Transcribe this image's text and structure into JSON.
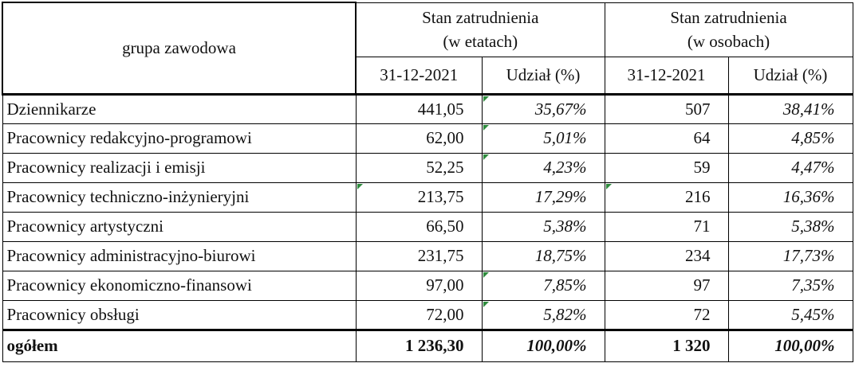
{
  "header": {
    "group_label": "grupa zawodowa",
    "section_etaty": "Stan zatrudnienia\n(w etatach)",
    "section_etaty_l1": "Stan zatrudnienia",
    "section_etaty_l2": "(w etatach)",
    "section_osoby_l1": "Stan zatrudnienia",
    "section_osoby_l2": "(w osobach)",
    "date": "31-12-2021",
    "share": "Udział (%)"
  },
  "rows": [
    {
      "name": "Dziennikarze",
      "etaty": "441,05",
      "etaty_pct": "35,67%",
      "osoby": "507",
      "osoby_pct": "38,41%"
    },
    {
      "name": "Pracownicy redakcyjno-programowi",
      "etaty": "62,00",
      "etaty_pct": "5,01%",
      "osoby": "64",
      "osoby_pct": "4,85%"
    },
    {
      "name": "Pracownicy realizacji i emisji",
      "etaty": "52,25",
      "etaty_pct": "4,23%",
      "osoby": "59",
      "osoby_pct": "4,47%"
    },
    {
      "name": "Pracownicy techniczno-inżynieryjni",
      "etaty": "213,75",
      "etaty_pct": "17,29%",
      "osoby": "216",
      "osoby_pct": "16,36%"
    },
    {
      "name": "Pracownicy artystyczni",
      "etaty": "66,50",
      "etaty_pct": "5,38%",
      "osoby": "71",
      "osoby_pct": "5,38%"
    },
    {
      "name": "Pracownicy administracyjno-biurowi",
      "etaty": "231,75",
      "etaty_pct": "18,75%",
      "osoby": "234",
      "osoby_pct": "17,73%"
    },
    {
      "name": "Pracownicy ekonomiczno-finansowi",
      "etaty": "97,00",
      "etaty_pct": "7,85%",
      "osoby": "97",
      "osoby_pct": "7,35%"
    },
    {
      "name": "Pracownicy obsługi",
      "etaty": "72,00",
      "etaty_pct": "5,82%",
      "osoby": "72",
      "osoby_pct": "5,45%"
    }
  ],
  "total": {
    "name": "ogółem",
    "etaty": "1 236,30",
    "etaty_pct": "100,00%",
    "osoby": "1 320",
    "osoby_pct": "100,00%"
  },
  "colors": {
    "flag": "#2e8b3d",
    "border": "#000000",
    "text": "#111111"
  }
}
